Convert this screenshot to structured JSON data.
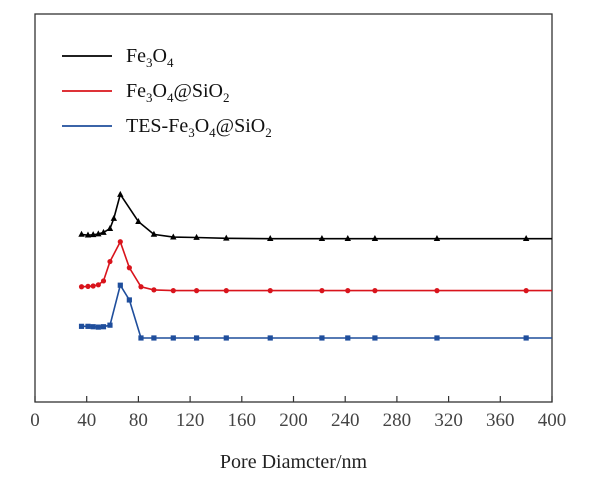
{
  "chart_data": {
    "type": "line",
    "xlabel": "Pore Diamcter/nm",
    "ylabel": "",
    "xlim": [
      0,
      400
    ],
    "xticks": [
      "0",
      "40",
      "80",
      "120",
      "160",
      "200",
      "240",
      "280",
      "320",
      "360",
      "400"
    ],
    "grid": false,
    "legend_position": "top-left",
    "y_ticks_shown": false,
    "series": [
      {
        "name": "Fe3O4",
        "color": "#000000",
        "marker": "triangle",
        "points": [
          [
            36,
            0.432
          ],
          [
            41,
            0.43
          ],
          [
            45,
            0.431
          ],
          [
            49,
            0.433
          ],
          [
            53,
            0.437
          ],
          [
            58,
            0.447
          ],
          [
            61,
            0.473
          ],
          [
            66,
            0.535
          ],
          [
            80,
            0.465
          ],
          [
            92,
            0.432
          ],
          [
            107,
            0.425
          ],
          [
            125,
            0.424
          ],
          [
            148,
            0.422
          ],
          [
            182,
            0.421
          ],
          [
            222,
            0.421
          ],
          [
            242,
            0.421
          ],
          [
            263,
            0.421
          ],
          [
            311,
            0.421
          ],
          [
            380,
            0.421
          ],
          [
            400,
            0.421
          ]
        ]
      },
      {
        "name": "Fe3O4@SiO2",
        "color": "#d9141c",
        "marker": "circle",
        "points": [
          [
            36,
            0.297
          ],
          [
            41,
            0.298
          ],
          [
            45,
            0.299
          ],
          [
            49,
            0.302
          ],
          [
            53,
            0.312
          ],
          [
            58,
            0.362
          ],
          [
            66,
            0.413
          ],
          [
            73,
            0.346
          ],
          [
            82,
            0.297
          ],
          [
            92,
            0.289
          ],
          [
            107,
            0.287
          ],
          [
            125,
            0.287
          ],
          [
            148,
            0.287
          ],
          [
            182,
            0.287
          ],
          [
            222,
            0.287
          ],
          [
            242,
            0.287
          ],
          [
            263,
            0.287
          ],
          [
            311,
            0.287
          ],
          [
            380,
            0.287
          ],
          [
            400,
            0.287
          ]
        ]
      },
      {
        "name": "TES-Fe3O4@SiO2",
        "color": "#1f4e9c",
        "marker": "square",
        "points": [
          [
            36,
            0.195
          ],
          [
            41,
            0.195
          ],
          [
            45,
            0.194
          ],
          [
            49,
            0.193
          ],
          [
            53,
            0.194
          ],
          [
            58,
            0.198
          ],
          [
            66,
            0.301
          ],
          [
            73,
            0.263
          ],
          [
            82,
            0.165
          ],
          [
            92,
            0.165
          ],
          [
            107,
            0.165
          ],
          [
            125,
            0.165
          ],
          [
            148,
            0.165
          ],
          [
            182,
            0.165
          ],
          [
            222,
            0.165
          ],
          [
            242,
            0.165
          ],
          [
            263,
            0.165
          ],
          [
            311,
            0.165
          ],
          [
            380,
            0.165
          ],
          [
            400,
            0.165
          ]
        ]
      }
    ]
  }
}
